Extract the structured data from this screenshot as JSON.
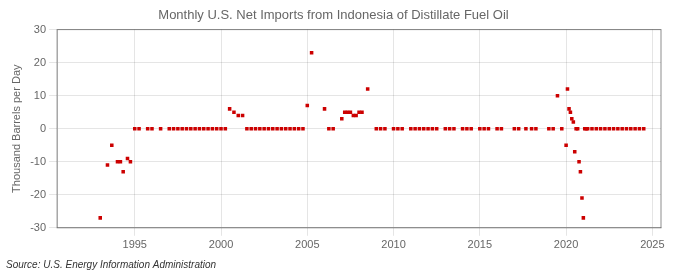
{
  "chart_data": {
    "type": "scatter",
    "title": "Monthly U.S. Net Imports from Indonesia of Distillate Fuel Oil",
    "ylabel": "Thousand Barrels per Day",
    "annotations": [
      "Source: U.S. Energy Information Administration"
    ],
    "color": "#cc0000",
    "marker": "square",
    "grid": true,
    "xlim": [
      1990.5,
      2025.5
    ],
    "ylim": [
      -30,
      30
    ],
    "xticks": [
      1995,
      2000,
      2005,
      2010,
      2015,
      2020,
      2025
    ],
    "yticks": [
      -30,
      -20,
      -10,
      0,
      10,
      20,
      30
    ],
    "x": [
      1993.0,
      1993.42,
      1993.67,
      1994.0,
      1994.17,
      1994.33,
      1994.58,
      1994.75,
      1995.0,
      1995.25,
      1995.75,
      1996.0,
      1996.5,
      1997.0,
      1997.25,
      1997.5,
      1997.75,
      1998.0,
      1998.25,
      1998.5,
      1998.75,
      1999.0,
      1999.25,
      1999.5,
      1999.75,
      2000.0,
      2000.25,
      2000.5,
      2000.75,
      2001.0,
      2001.25,
      2001.5,
      2001.75,
      2002.0,
      2002.25,
      2002.5,
      2002.75,
      2003.0,
      2003.25,
      2003.5,
      2003.75,
      2004.0,
      2004.25,
      2004.5,
      2004.75,
      2005.0,
      2005.25,
      2006.0,
      2006.25,
      2006.5,
      2007.0,
      2007.17,
      2007.33,
      2007.5,
      2007.67,
      2007.83,
      2008.0,
      2008.17,
      2008.5,
      2009.0,
      2009.25,
      2009.5,
      2010.0,
      2010.25,
      2010.5,
      2011.0,
      2011.25,
      2011.5,
      2011.75,
      2012.0,
      2012.25,
      2012.5,
      2013.0,
      2013.25,
      2013.5,
      2014.0,
      2014.25,
      2014.5,
      2015.0,
      2015.25,
      2015.5,
      2016.0,
      2016.25,
      2017.0,
      2017.25,
      2017.67,
      2018.0,
      2018.25,
      2019.0,
      2019.25,
      2019.5,
      2019.75,
      2020.0,
      2020.08,
      2020.17,
      2020.25,
      2020.33,
      2020.42,
      2020.5,
      2020.58,
      2020.67,
      2020.75,
      2020.83,
      2020.92,
      2021.0,
      2021.08,
      2021.17,
      2021.25,
      2021.5,
      2021.75,
      2022.0,
      2022.25,
      2022.5,
      2022.75,
      2023.0,
      2023.25,
      2023.5,
      2023.75,
      2024.0,
      2024.25,
      2024.5
    ],
    "values": [
      -27.0,
      -11.0,
      -5.0,
      -10.0,
      -10.0,
      -13.0,
      -9.0,
      -10.0,
      0.0,
      0.0,
      0.0,
      0.0,
      0.0,
      0.0,
      0.0,
      0.0,
      0.0,
      0.0,
      0.0,
      0.0,
      0.0,
      0.0,
      0.0,
      0.0,
      0.0,
      0.0,
      0.0,
      6.0,
      5.0,
      4.0,
      4.0,
      0.0,
      0.0,
      0.0,
      0.0,
      0.0,
      0.0,
      0.0,
      0.0,
      0.0,
      0.0,
      0.0,
      0.0,
      0.0,
      0.0,
      7.0,
      23.0,
      6.0,
      0.0,
      0.0,
      3.0,
      5.0,
      5.0,
      5.0,
      4.0,
      4.0,
      5.0,
      5.0,
      12.0,
      0.0,
      0.0,
      0.0,
      0.0,
      0.0,
      0.0,
      0.0,
      0.0,
      0.0,
      0.0,
      0.0,
      0.0,
      0.0,
      0.0,
      0.0,
      0.0,
      0.0,
      0.0,
      0.0,
      0.0,
      0.0,
      0.0,
      0.0,
      0.0,
      0.0,
      0.0,
      0.0,
      0.0,
      0.0,
      0.0,
      0.0,
      10.0,
      0.0,
      -5.0,
      12.0,
      6.0,
      5.0,
      3.0,
      2.0,
      -7.0,
      0.0,
      0.0,
      -10.0,
      -13.0,
      -21.0,
      -27.0,
      0.0,
      0.0,
      0.0,
      0.0,
      0.0,
      0.0,
      0.0,
      0.0,
      0.0,
      0.0,
      0.0,
      0.0,
      0.0,
      0.0,
      0.0,
      0.0
    ]
  }
}
